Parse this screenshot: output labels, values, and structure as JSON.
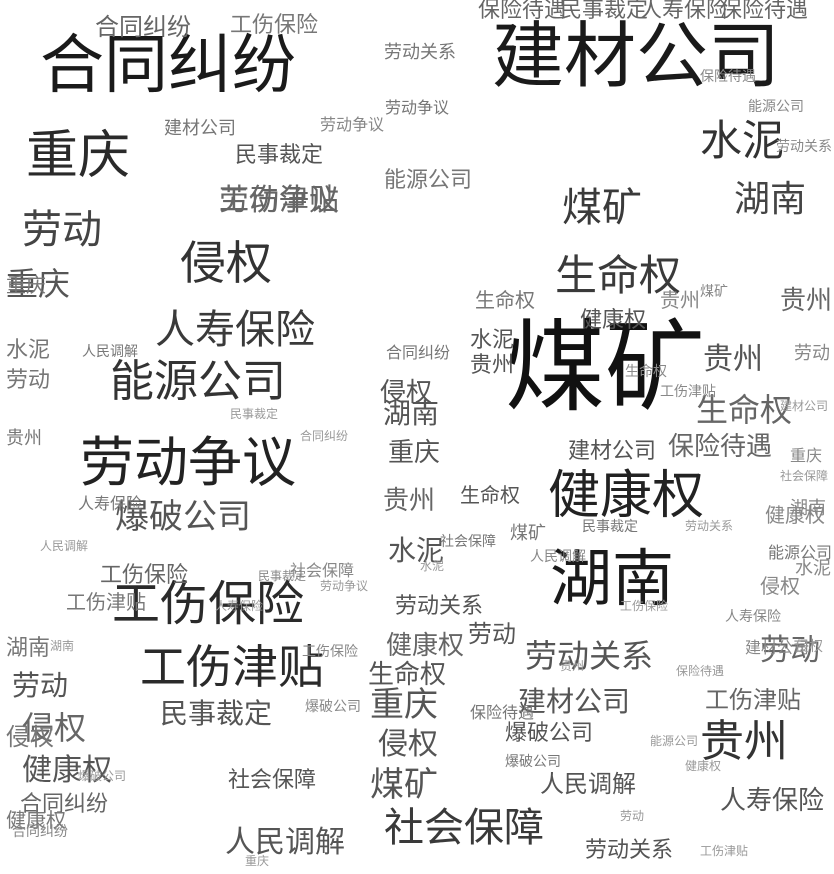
{
  "cloud": {
    "words": [
      {
        "text": "煤矿",
        "tone": "#111111"
      },
      {
        "text": "建材公司",
        "tone": "#1a1a1a"
      },
      {
        "text": "合同纠纷",
        "tone": "#1a1a1a"
      },
      {
        "text": "劳动争议",
        "tone": "#222222"
      },
      {
        "text": "健康权",
        "tone": "#222222"
      },
      {
        "text": "湖南",
        "tone": "#1a1a1a"
      },
      {
        "text": "工伤保险",
        "tone": "#2a2a2a"
      },
      {
        "text": "工伤津贴",
        "tone": "#2a2a2a"
      },
      {
        "text": "重庆",
        "tone": "#2a2a2a"
      },
      {
        "text": "能源公司",
        "tone": "#333333"
      },
      {
        "text": "侵权",
        "tone": "#333333"
      },
      {
        "text": "水泥",
        "tone": "#333333"
      },
      {
        "text": "人寿保险",
        "tone": "#3a3a3a"
      },
      {
        "text": "生命权",
        "tone": "#3a3a3a"
      },
      {
        "text": "煤矿",
        "tone": "#3a3a3a"
      },
      {
        "text": "湖南",
        "tone": "#444444"
      },
      {
        "text": "社会保障",
        "tone": "#3a3a3a"
      },
      {
        "text": "贵州",
        "tone": "#333333"
      },
      {
        "text": "劳动",
        "tone": "#444444"
      },
      {
        "text": "爆破公司",
        "tone": "#555555"
      },
      {
        "text": "劳动关系",
        "tone": "#555555"
      },
      {
        "text": "人民调解",
        "tone": "#555555"
      },
      {
        "text": "民事裁定",
        "tone": "#555555"
      },
      {
        "text": "侵权",
        "tone": "#555555"
      },
      {
        "text": "健康权",
        "tone": "#555555"
      },
      {
        "text": "重庆",
        "tone": "#555555"
      },
      {
        "text": "劳动",
        "tone": "#555555"
      },
      {
        "text": "生命权",
        "tone": "#666666"
      },
      {
        "text": "工伤津贴",
        "tone": "#666666"
      },
      {
        "text": "保险待遇",
        "tone": "#666666"
      },
      {
        "text": "劳动争议",
        "tone": "#666666"
      },
      {
        "text": "健康权",
        "tone": "#666666"
      },
      {
        "text": "合同纠纷",
        "tone": "#666666"
      },
      {
        "text": "工伤保险",
        "tone": "#666666"
      },
      {
        "text": "保险待遇",
        "tone": "#666666"
      },
      {
        "text": "民事裁定",
        "tone": "#666666"
      },
      {
        "text": "人寿保险",
        "tone": "#666666"
      },
      {
        "text": "保险待遇",
        "tone": "#666666"
      },
      {
        "text": "重庆",
        "tone": "#555555"
      },
      {
        "text": "水泥",
        "tone": "#555555"
      },
      {
        "text": "贵州",
        "tone": "#666666"
      },
      {
        "text": "生命权",
        "tone": "#555555"
      },
      {
        "text": "贵州",
        "tone": "#555555"
      },
      {
        "text": "劳动",
        "tone": "#666666"
      },
      {
        "text": "劳动",
        "tone": "#555555"
      },
      {
        "text": "贵州",
        "tone": "#666666"
      },
      {
        "text": "建材公司",
        "tone": "#555555"
      },
      {
        "text": "侵权",
        "tone": "#666666"
      },
      {
        "text": "工伤津贴",
        "tone": "#666666"
      },
      {
        "text": "人寿保险",
        "tone": "#555555"
      },
      {
        "text": "合同纠纷",
        "tone": "#666666"
      },
      {
        "text": "劳动关系",
        "tone": "#555555"
      },
      {
        "text": "民事裁定",
        "tone": "#555555"
      },
      {
        "text": "社会保障",
        "tone": "#555555"
      },
      {
        "text": "人民调解",
        "tone": "#555555"
      },
      {
        "text": "煤矿",
        "tone": "#555555"
      },
      {
        "text": "重庆",
        "tone": "#555555"
      },
      {
        "text": "侵权",
        "tone": "#555555"
      },
      {
        "text": "建材公司",
        "tone": "#555555"
      },
      {
        "text": "劳动关系",
        "tone": "#555555"
      },
      {
        "text": "爆破公司",
        "tone": "#555555"
      },
      {
        "text": "湖南",
        "tone": "#555555"
      },
      {
        "text": "健康权",
        "tone": "#555555"
      },
      {
        "text": "生命权",
        "tone": "#555555"
      },
      {
        "text": "水泥",
        "tone": "#555555"
      },
      {
        "text": "贵州",
        "tone": "#555555"
      },
      {
        "text": "工伤保险",
        "tone": "#777777"
      },
      {
        "text": "能源公司",
        "tone": "#777777"
      },
      {
        "text": "合同纠纷",
        "tone": "#777777"
      },
      {
        "text": "劳动争议",
        "tone": "#777777"
      },
      {
        "text": "保险待遇",
        "tone": "#777777"
      },
      {
        "text": "民事裁定",
        "tone": "#777777"
      },
      {
        "text": "社会保障",
        "tone": "#777777"
      },
      {
        "text": "人民调解",
        "tone": "#777777"
      },
      {
        "text": "爆破公司",
        "tone": "#777777"
      },
      {
        "text": "侵权",
        "tone": "#777777"
      },
      {
        "text": "健康权",
        "tone": "#777777"
      },
      {
        "text": "湖南",
        "tone": "#777777"
      },
      {
        "text": "重庆",
        "tone": "#777777"
      },
      {
        "text": "水泥",
        "tone": "#777777"
      },
      {
        "text": "贵州",
        "tone": "#777777"
      },
      {
        "text": "劳动",
        "tone": "#777777"
      },
      {
        "text": "煤矿",
        "tone": "#777777"
      },
      {
        "text": "生命权",
        "tone": "#777777"
      },
      {
        "text": "工伤津贴",
        "tone": "#777777"
      },
      {
        "text": "建材公司",
        "tone": "#777777"
      },
      {
        "text": "人寿保险",
        "tone": "#777777"
      },
      {
        "text": "劳动关系",
        "tone": "#777777"
      },
      {
        "text": "能源公司",
        "tone": "#777777"
      },
      {
        "text": "合同纠纷",
        "tone": "#888888"
      },
      {
        "text": "劳动争议",
        "tone": "#888888"
      },
      {
        "text": "社会保障",
        "tone": "#888888"
      },
      {
        "text": "民事裁定",
        "tone": "#888888"
      },
      {
        "text": "人民调解",
        "tone": "#888888"
      },
      {
        "text": "爆破公司",
        "tone": "#888888"
      },
      {
        "text": "工伤保险",
        "tone": "#888888"
      },
      {
        "text": "侵权",
        "tone": "#888888"
      },
      {
        "text": "健康权",
        "tone": "#888888"
      },
      {
        "text": "重庆",
        "tone": "#888888"
      },
      {
        "text": "水泥",
        "tone": "#888888"
      },
      {
        "text": "贵州",
        "tone": "#888888"
      },
      {
        "text": "湖南",
        "tone": "#888888"
      },
      {
        "text": "劳动",
        "tone": "#888888"
      },
      {
        "text": "生命权",
        "tone": "#888888"
      },
      {
        "text": "保险待遇",
        "tone": "#888888"
      },
      {
        "text": "建材公司",
        "tone": "#888888"
      },
      {
        "text": "人寿保险",
        "tone": "#888888"
      },
      {
        "text": "工伤津贴",
        "tone": "#888888"
      },
      {
        "text": "能源公司",
        "tone": "#888888"
      },
      {
        "text": "劳动关系",
        "tone": "#888888"
      },
      {
        "text": "煤矿",
        "tone": "#888888"
      },
      {
        "text": "合同纠纷",
        "tone": "#999999"
      },
      {
        "text": "社会保障",
        "tone": "#999999"
      },
      {
        "text": "民事裁定",
        "tone": "#999999"
      },
      {
        "text": "人民调解",
        "tone": "#999999"
      },
      {
        "text": "爆破公司",
        "tone": "#999999"
      },
      {
        "text": "工伤保险",
        "tone": "#999999"
      },
      {
        "text": "保险待遇",
        "tone": "#999999"
      },
      {
        "text": "劳动争议",
        "tone": "#999999"
      },
      {
        "text": "人寿保险",
        "tone": "#999999"
      },
      {
        "text": "能源公司",
        "tone": "#999999"
      },
      {
        "text": "建材公司",
        "tone": "#999999"
      },
      {
        "text": "劳动关系",
        "tone": "#999999"
      },
      {
        "text": "工伤津贴",
        "tone": "#999999"
      },
      {
        "text": "侵权",
        "tone": "#999999"
      },
      {
        "text": "健康权",
        "tone": "#999999"
      },
      {
        "text": "湖南",
        "tone": "#999999"
      },
      {
        "text": "重庆",
        "tone": "#999999"
      },
      {
        "text": "水泥",
        "tone": "#999999"
      },
      {
        "text": "贵州",
        "tone": "#999999"
      },
      {
        "text": "劳动",
        "tone": "#999999"
      },
      {
        "text": "煤矿",
        "tone": "#999999"
      },
      {
        "text": "生命权",
        "tone": "#999999"
      }
    ]
  }
}
